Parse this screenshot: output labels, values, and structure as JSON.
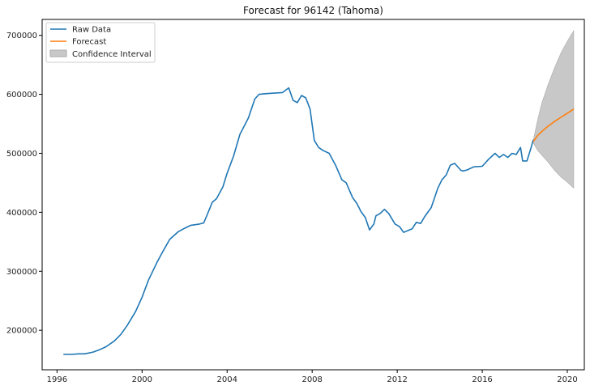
{
  "chart_data": {
    "type": "line",
    "title": "Forecast for 96142 (Tahoma)",
    "xlabel": "",
    "ylabel": "",
    "xlim": [
      1995.3,
      2020.8
    ],
    "ylim": [
      133000,
      727000
    ],
    "x_ticks": [
      1996,
      2000,
      2004,
      2008,
      2012,
      2016,
      2020
    ],
    "x_tick_labels": [
      "1996",
      "2000",
      "2004",
      "2008",
      "2012",
      "2016",
      "2020"
    ],
    "y_ticks": [
      200000,
      300000,
      400000,
      500000,
      600000,
      700000
    ],
    "y_tick_labels": [
      "200000",
      "300000",
      "400000",
      "500000",
      "600000",
      "700000"
    ],
    "grid": false,
    "legend_position": "top-left",
    "legend": [
      "Raw Data",
      "Forecast",
      "Confidence Interval"
    ],
    "colors": {
      "raw": "#1f77b4",
      "forecast": "#ff7f0e",
      "ci": "#c8c8c8",
      "ci_edge": "#aaaaaa"
    },
    "series": [
      {
        "name": "Raw Data",
        "x": [
          1996.3,
          1996.7,
          1997.0,
          1997.3,
          1997.7,
          1998.0,
          1998.3,
          1998.7,
          1999.0,
          1999.3,
          1999.7,
          2000.0,
          2000.3,
          2000.7,
          2001.0,
          2001.3,
          2001.7,
          2002.0,
          2002.3,
          2002.7,
          2002.9,
          2003.1,
          2003.3,
          2003.5,
          2003.8,
          2004.0,
          2004.3,
          2004.6,
          2005.0,
          2005.3,
          2005.5,
          2005.8,
          2006.2,
          2006.6,
          2006.9,
          2007.1,
          2007.3,
          2007.5,
          2007.7,
          2007.9,
          2008.1,
          2008.3,
          2008.5,
          2008.8,
          2009.1,
          2009.4,
          2009.6,
          2009.9,
          2010.1,
          2010.3,
          2010.5,
          2010.7,
          2010.9,
          2011.0,
          2011.2,
          2011.4,
          2011.6,
          2011.9,
          2012.1,
          2012.3,
          2012.5,
          2012.7,
          2012.9,
          2013.1,
          2013.3,
          2013.6,
          2013.9,
          2014.1,
          2014.3,
          2014.5,
          2014.7,
          2015.0,
          2015.1,
          2015.3,
          2015.6,
          2016.0,
          2016.3,
          2016.6,
          2016.8,
          2017.0,
          2017.2,
          2017.4,
          2017.6,
          2017.8,
          2017.9,
          2018.1,
          2018.3,
          2018.4
        ],
        "values": [
          159000,
          159000,
          160000,
          160000,
          163000,
          167000,
          172000,
          182000,
          193000,
          208000,
          232000,
          256000,
          285000,
          315000,
          335000,
          354000,
          367000,
          373000,
          378000,
          380000,
          382000,
          399000,
          417000,
          423000,
          443000,
          466000,
          495000,
          532000,
          560000,
          592000,
          600000,
          601000,
          602000,
          603000,
          611000,
          590000,
          586000,
          598000,
          594000,
          575000,
          522000,
          510000,
          505000,
          500000,
          480000,
          455000,
          450000,
          425000,
          415000,
          401000,
          391000,
          370000,
          380000,
          394000,
          398000,
          405000,
          398000,
          380000,
          376000,
          366000,
          369000,
          372000,
          383000,
          381000,
          393000,
          408000,
          440000,
          455000,
          463000,
          480000,
          483000,
          471000,
          470000,
          472000,
          477000,
          478000,
          490000,
          500000,
          493000,
          498000,
          493000,
          500000,
          498000,
          510000,
          487000,
          487000,
          510000,
          523000
        ]
      },
      {
        "name": "Forecast",
        "x": [
          2018.4,
          2018.6,
          2018.8,
          2019.1,
          2019.4,
          2019.7,
          2020.0,
          2020.3
        ],
        "values": [
          520000,
          530000,
          537000,
          546000,
          554000,
          561000,
          568000,
          575000
        ]
      }
    ],
    "confidence_interval": {
      "x": [
        2018.4,
        2018.6,
        2018.8,
        2019.1,
        2019.4,
        2019.7,
        2020.0,
        2020.3
      ],
      "upper": [
        522000,
        556000,
        585000,
        617000,
        645000,
        670000,
        690000,
        708000
      ],
      "lower": [
        518000,
        505000,
        497000,
        485000,
        471000,
        460000,
        451000,
        441000
      ]
    }
  }
}
